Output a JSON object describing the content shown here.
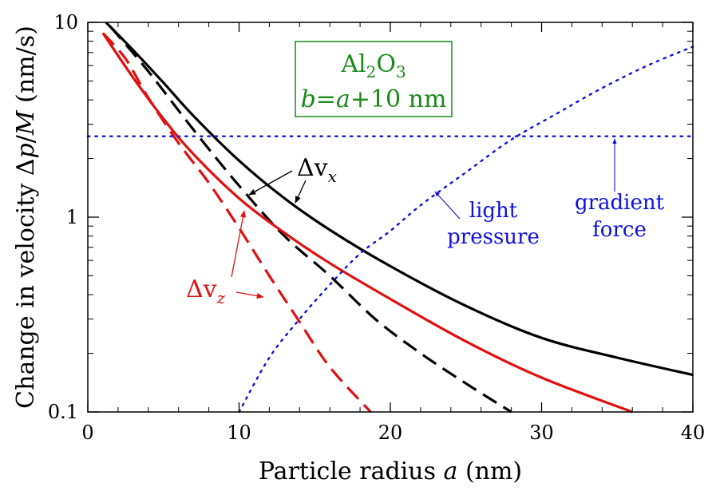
{
  "chart_data": {
    "type": "line",
    "title": "",
    "xlabel": {
      "pre": "Particle radius ",
      "var": "a",
      "post": " (nm)"
    },
    "ylabel": {
      "pre": "Change in velocity Δ",
      "var1": "p",
      "mid": "/",
      "var2": "M",
      "post": " (nm/s)"
    },
    "xlim": [
      0,
      40
    ],
    "ylim": [
      0.1,
      10
    ],
    "yscale": "log",
    "x_ticks": [
      0,
      10,
      20,
      30,
      40
    ],
    "x_tick_labels": [
      "0",
      "10",
      "20",
      "30",
      "40"
    ],
    "y_ticks": [
      0.1,
      1,
      10
    ],
    "y_tick_labels": [
      "0.1",
      "1",
      "10"
    ],
    "grid": false,
    "series": [
      {
        "key": "vx_solid",
        "color": "#000000",
        "style": "solid",
        "x": [
          1.2,
          3,
          5,
          7,
          10,
          13,
          16,
          20,
          25,
          30,
          35,
          40
        ],
        "y": [
          10,
          7.2,
          4.9,
          3.3,
          1.95,
          1.25,
          0.86,
          0.56,
          0.35,
          0.24,
          0.19,
          0.155
        ]
      },
      {
        "key": "vx_dashed",
        "color": "#000000",
        "style": "dashed",
        "x": [
          1.5,
          4,
          7,
          10,
          13,
          16,
          19,
          22,
          25,
          28
        ],
        "y": [
          9.5,
          5.6,
          2.8,
          1.45,
          0.8,
          0.5,
          0.3,
          0.2,
          0.14,
          0.1
        ]
      },
      {
        "key": "vz_solid",
        "color": "#e01010",
        "style": "solid",
        "x": [
          1,
          3,
          5,
          7,
          10,
          13,
          16,
          20,
          25,
          30,
          36
        ],
        "y": [
          8.8,
          5.2,
          3.2,
          2.1,
          1.25,
          0.83,
          0.58,
          0.38,
          0.23,
          0.15,
          0.1
        ]
      },
      {
        "key": "vz_dashed",
        "color": "#e01010",
        "style": "dashed",
        "x": [
          1,
          2.5,
          4,
          6,
          8,
          10,
          12,
          14,
          16,
          18.7
        ],
        "y": [
          8.8,
          6.5,
          4.1,
          2.4,
          1.5,
          0.88,
          0.5,
          0.29,
          0.17,
          0.1
        ]
      },
      {
        "key": "light_pressure",
        "color": "#1010e0",
        "style": "dotted",
        "x": [
          10,
          12,
          14,
          16,
          18,
          20,
          22,
          25,
          28,
          31,
          34,
          37,
          40
        ],
        "y": [
          0.1,
          0.19,
          0.3,
          0.45,
          0.65,
          0.85,
          1.15,
          1.7,
          2.5,
          3.4,
          4.6,
          6,
          7.5
        ]
      },
      {
        "key": "gradient_force",
        "color": "#1010e0",
        "style": "dotted",
        "x": [
          0,
          40
        ],
        "y": [
          2.6,
          2.6
        ]
      }
    ],
    "annotations": {
      "box": {
        "line1_base": "Al",
        "line1_sub1": "2",
        "line1_mid": "O",
        "line1_sub2": "3",
        "line2_b": "b",
        "line2_eq": "=",
        "line2_a": "a",
        "line2_rest": "+10 nm",
        "color": "#1a8a1a"
      },
      "dvx": {
        "delta": "Δv",
        "sub": "x",
        "color": "#000000"
      },
      "dvz": {
        "delta": "Δv",
        "sub": "z",
        "color": "#e01010"
      },
      "light_pressure": {
        "line1": "light",
        "line2": "pressure",
        "color": "#1010e0"
      },
      "gradient_force": {
        "line1": "gradient",
        "line2": "force",
        "color": "#1010e0"
      }
    }
  }
}
